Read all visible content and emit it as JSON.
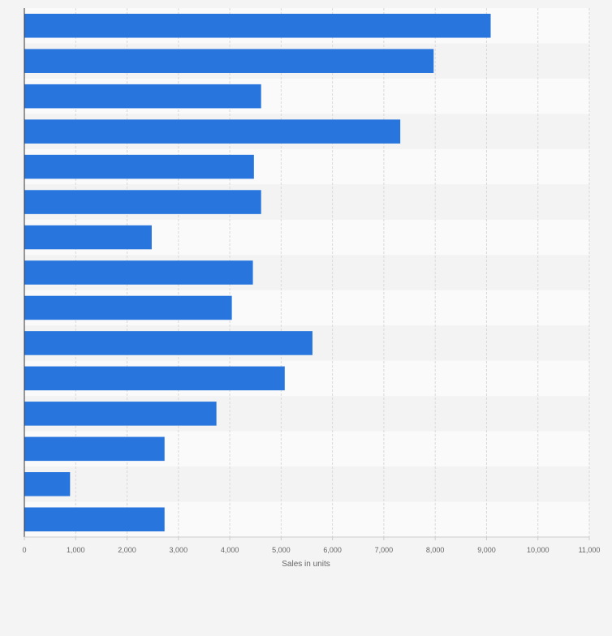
{
  "colors": {
    "bar": "#2876dd",
    "band_light": "#fafafa",
    "band_dark": "#f3f3f3",
    "grid": "#d9d9d9",
    "axis": "#333333",
    "tick_text": "#666666"
  },
  "chart_data": {
    "type": "bar",
    "orientation": "horizontal",
    "title": "",
    "xlabel": "Sales in units",
    "ylabel": "",
    "xlim": [
      0,
      11000
    ],
    "x_ticks": [
      0,
      1000,
      2000,
      3000,
      4000,
      5000,
      6000,
      7000,
      8000,
      9000,
      10000,
      11000
    ],
    "x_tick_labels": [
      "0",
      "1,000",
      "2,000",
      "3,000",
      "4,000",
      "5,000",
      "6,000",
      "7,000",
      "8,000",
      "9,000",
      "10,000",
      "11,000"
    ],
    "categories": [
      "",
      "",
      "",
      "",
      "",
      "",
      "",
      "",
      "",
      "",
      "",
      "",
      "",
      "",
      ""
    ],
    "values": [
      9080,
      7970,
      4610,
      7320,
      4470,
      4610,
      2480,
      4450,
      4040,
      5610,
      5070,
      3740,
      2730,
      890,
      2730
    ],
    "grid": true,
    "legend": "none"
  }
}
